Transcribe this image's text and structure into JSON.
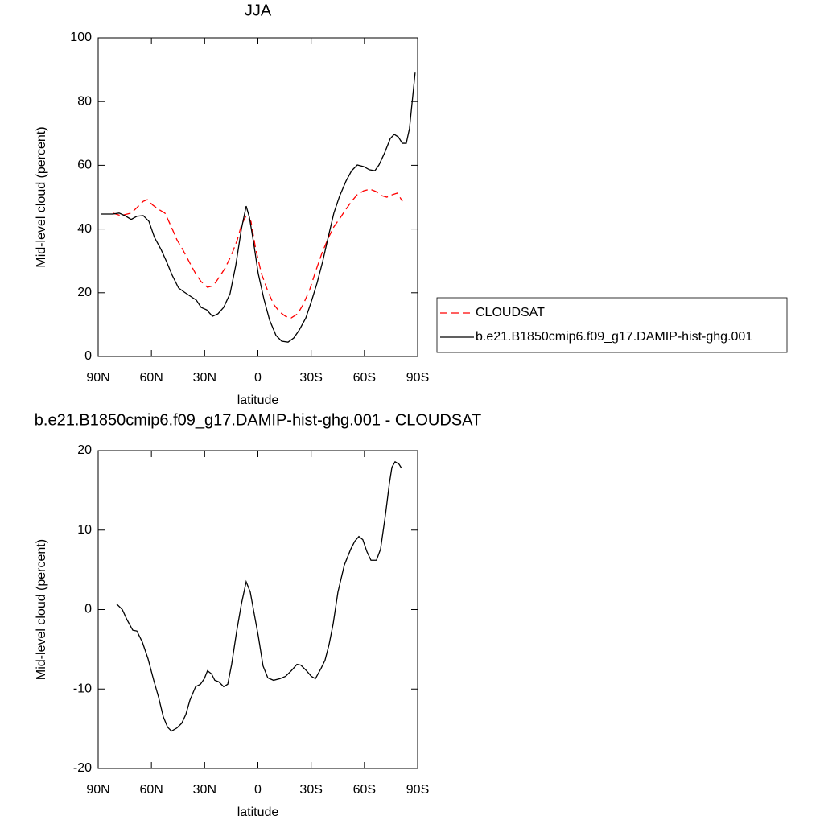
{
  "chart_data": [
    {
      "type": "line",
      "title": "JJA",
      "x_label": "latitude",
      "y_label": "Mid-level cloud (percent)",
      "xlim": [
        90,
        -90
      ],
      "xticks": [
        {
          "value": 90,
          "label": "90N"
        },
        {
          "value": 60,
          "label": "60N"
        },
        {
          "value": 30,
          "label": "30N"
        },
        0,
        {
          "value": -30,
          "label": "30S"
        },
        {
          "value": -60,
          "label": "60S"
        },
        {
          "value": -90,
          "label": "90S"
        }
      ],
      "ylim": [
        0,
        100
      ],
      "yticks": [
        0,
        20,
        40,
        60,
        80,
        100
      ],
      "legend": "right",
      "series": [
        {
          "name": "CLOUDSAT",
          "color": "#ff0000",
          "line_style": "dashed",
          "x": [
            81.8,
            77.3,
            71.4,
            68.2,
            64.6,
            62.3,
            59.2,
            56,
            52.4,
            49.2,
            45.6,
            42.4,
            38.8,
            35.1,
            32,
            28.4,
            25.2,
            22,
            18.4,
            14.8,
            11.6,
            9.3,
            6.6,
            3.9,
            1.2,
            -2,
            -5.6,
            -8.8,
            -12.4,
            -15.6,
            -18.8,
            -22.4,
            -25.6,
            -29.2,
            -32.4,
            -36,
            -39.6,
            -42.8,
            -46,
            -49.6,
            -52.8,
            -56,
            -59.6,
            -63.2,
            -66.4,
            -69.6,
            -72.7,
            -75.9,
            -78.6,
            -81.4
          ],
          "values": [
            45,
            44.2,
            45,
            46.7,
            48.7,
            49.2,
            47.5,
            46.2,
            45,
            41.2,
            36.6,
            33.6,
            29.8,
            26,
            23.5,
            21.7,
            22.2,
            24.7,
            27.8,
            32,
            36.6,
            41.2,
            44.2,
            42.4,
            33.6,
            26,
            20.5,
            16.4,
            13.9,
            12.6,
            12.1,
            13.4,
            16.4,
            21,
            26.5,
            32.3,
            37.1,
            40.7,
            43.2,
            46.2,
            48.7,
            50.8,
            52,
            52.5,
            51.8,
            50.5,
            50,
            50.8,
            51.3,
            48.7
          ]
        },
        {
          "name": "b.e21.B1850cmip6.f09_g17.DAMIP-hist-ghg.001",
          "color": "#000000",
          "line_style": "solid",
          "x": [
            88.2,
            81.8,
            78.2,
            75,
            71.4,
            68.2,
            64.6,
            61.4,
            58.3,
            54.6,
            51.5,
            48.3,
            44.7,
            41.5,
            38.3,
            34.7,
            32,
            28.8,
            25.6,
            22.5,
            19.3,
            15.7,
            12.5,
            9.3,
            6.6,
            4.8,
            2.5,
            -0.2,
            -3.4,
            -6.6,
            -10.2,
            -13.4,
            -17,
            -20.2,
            -23.3,
            -27,
            -30.1,
            -33.3,
            -36.5,
            -39.6,
            -42.8,
            -46,
            -49.6,
            -52.8,
            -56,
            -59.6,
            -62.8,
            -65.9,
            -68.2,
            -71.4,
            -74.6,
            -76.8,
            -79.1,
            -81.4,
            -83.6,
            -85.4,
            -88.6
          ],
          "values": [
            44.7,
            44.7,
            45,
            44.2,
            43,
            44,
            44.2,
            42.4,
            37.4,
            33.6,
            29.8,
            25.5,
            21.5,
            20.2,
            19,
            17.7,
            15.4,
            14.6,
            12.6,
            13.4,
            15.4,
            19.7,
            28.5,
            40,
            47.2,
            43.7,
            36,
            26,
            18,
            11.4,
            6.6,
            4.8,
            4.5,
            5.8,
            8.3,
            12.1,
            17.2,
            23,
            29.8,
            37.4,
            45,
            50.3,
            55,
            58.3,
            60.1,
            59.6,
            58.6,
            58.3,
            60.1,
            63.9,
            68.4,
            69.7,
            68.9,
            66.9,
            66.9,
            71.5,
            89.1
          ]
        }
      ]
    },
    {
      "type": "line",
      "title": "b.e21.B1850cmip6.f09_g17.DAMIP-hist-ghg.001 - CLOUDSAT",
      "x_label": "latitude",
      "y_label": "Mid-level cloud (percent)",
      "xlim": [
        90,
        -90
      ],
      "xticks": [
        {
          "value": 90,
          "label": "90N"
        },
        {
          "value": 60,
          "label": "60N"
        },
        {
          "value": 30,
          "label": "30N"
        },
        0,
        {
          "value": -30,
          "label": "30S"
        },
        {
          "value": -60,
          "label": "60S"
        },
        {
          "value": -90,
          "label": "90S"
        }
      ],
      "ylim": [
        -20,
        20
      ],
      "yticks": [
        -20,
        -10,
        0,
        10,
        20
      ],
      "series": [
        {
          "color": "#000000",
          "line_style": "solid",
          "x": [
            79.6,
            76.4,
            73.7,
            70.5,
            68.2,
            65.1,
            61.9,
            58.7,
            56,
            53.3,
            50.9,
            48.7,
            45.6,
            42.9,
            40.6,
            38.3,
            35.1,
            32.4,
            30.2,
            28.4,
            26.1,
            24.3,
            22,
            19.3,
            17,
            14.8,
            12,
            9.3,
            6.6,
            4.3,
            2.1,
            -0.2,
            -2.9,
            -5.6,
            -8.8,
            -12.4,
            -15.6,
            -18.8,
            -22,
            -24.2,
            -27.4,
            -30.1,
            -32.4,
            -35.6,
            -37.8,
            -40.1,
            -42.4,
            -45.1,
            -48.7,
            -52.3,
            -54.6,
            -56.9,
            -59.1,
            -61.4,
            -63.7,
            -66.8,
            -69.1,
            -71.8,
            -74.1,
            -75.5,
            -77.3,
            -79.5,
            -80.9
          ],
          "values": [
            0.7,
            0,
            -1.3,
            -2.6,
            -2.7,
            -4.1,
            -6.2,
            -8.9,
            -11,
            -13.5,
            -14.8,
            -15.3,
            -14.9,
            -14.3,
            -13.2,
            -11.4,
            -9.7,
            -9.4,
            -8.7,
            -7.7,
            -8.1,
            -8.9,
            -9.1,
            -9.7,
            -9.4,
            -6.9,
            -2.8,
            0.7,
            3.5,
            2.2,
            -0.5,
            -3.3,
            -7.1,
            -8.6,
            -8.9,
            -8.7,
            -8.4,
            -7.7,
            -6.9,
            -7,
            -7.7,
            -8.4,
            -8.7,
            -7.4,
            -6.4,
            -4.4,
            -1.8,
            2.2,
            5.6,
            7.6,
            8.6,
            9.2,
            8.8,
            7.3,
            6.2,
            6.2,
            7.6,
            11.8,
            15.9,
            17.9,
            18.6,
            18.3,
            17.8
          ]
        }
      ]
    }
  ]
}
